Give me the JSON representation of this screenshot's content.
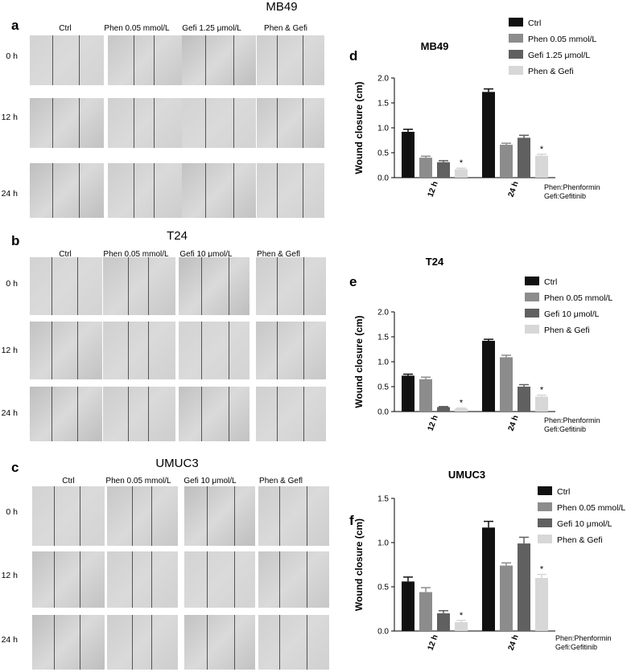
{
  "panels": [
    {
      "letter": "a",
      "title": "MB49",
      "columns": [
        "Ctrl",
        "Phen 0.05 mmol/L",
        "Gefi 1.25 μmol/L",
        "Phen & Gefi"
      ],
      "rows": [
        "0 h",
        "12 h",
        "24 h"
      ]
    },
    {
      "letter": "b",
      "title": "T24",
      "columns": [
        "Ctrl",
        "Phen 0.05 mmol/L",
        "Gefi 10 μmol/L",
        "Phen & Gefl"
      ],
      "rows": [
        "0 h",
        "12 h",
        "24 h"
      ]
    },
    {
      "letter": "c",
      "title": "UMUC3",
      "columns": [
        "Ctrl",
        "Phen 0.05 mmol/L",
        "Gefi 10 μmol/L",
        "Phen & Gefl"
      ],
      "rows": [
        "0 h",
        "12 h",
        "24 h"
      ]
    }
  ],
  "colors": {
    "Ctrl": "#111111",
    "Phen": "#8c8c8c",
    "Gefi": "#606060",
    "Combo": "#d7d7d7"
  },
  "chart_data": [
    {
      "letter": "d",
      "type": "bar",
      "title": "MB49",
      "ylabel": "Wound closure (cm)",
      "xlabel": "",
      "categories": [
        "12 h",
        "24 h"
      ],
      "ylim": [
        0,
        2.0
      ],
      "yticks": [
        "0.0",
        "0.5",
        "1.0",
        "1.5",
        "2.0"
      ],
      "series": [
        {
          "name": "Ctrl",
          "values": [
            0.92,
            1.72
          ],
          "errors": [
            0.05,
            0.06
          ]
        },
        {
          "name": "Phen 0.05 mmol/L",
          "values": [
            0.4,
            0.66
          ],
          "errors": [
            0.03,
            0.03
          ]
        },
        {
          "name": "Gefi 1.25 μmol/L",
          "values": [
            0.31,
            0.8
          ],
          "errors": [
            0.03,
            0.05
          ]
        },
        {
          "name": "Phen & Gefi",
          "values": [
            0.17,
            0.44
          ],
          "errors": [
            0.02,
            0.03
          ]
        }
      ],
      "significance": [
        "*",
        "*"
      ],
      "legend": "top-right",
      "footnote": [
        "Phen:Phenformin",
        "Gefi:Gefitinib"
      ]
    },
    {
      "letter": "e",
      "type": "bar",
      "title": "T24",
      "ylabel": "Wound closure (cm)",
      "xlabel": "",
      "categories": [
        "12 h",
        "24 h"
      ],
      "ylim": [
        0,
        2.0
      ],
      "yticks": [
        "0.0",
        "0.5",
        "1.0",
        "1.5",
        "2.0"
      ],
      "series": [
        {
          "name": "Ctrl",
          "values": [
            0.72,
            1.42
          ],
          "errors": [
            0.03,
            0.03
          ]
        },
        {
          "name": "Phen 0.05 mmol/L",
          "values": [
            0.65,
            1.09
          ],
          "errors": [
            0.04,
            0.04
          ]
        },
        {
          "name": "Gefi 10 μmol/L",
          "values": [
            0.09,
            0.5
          ],
          "errors": [
            0.01,
            0.04
          ]
        },
        {
          "name": "Phen & Gefi",
          "values": [
            0.06,
            0.3
          ],
          "errors": [
            0.01,
            0.03
          ]
        }
      ],
      "significance": [
        "*",
        "*"
      ],
      "legend": "top-right",
      "footnote": [
        "Phen:Phenformin",
        "Gefi:Gefitinib"
      ]
    },
    {
      "letter": "f",
      "type": "bar",
      "title": "UMUC3",
      "ylabel": "Wound closure (cm)",
      "xlabel": "",
      "categories": [
        "12 h",
        "24 h"
      ],
      "ylim": [
        0,
        1.5
      ],
      "yticks": [
        "0.0",
        "0.5",
        "1.0",
        "1.5"
      ],
      "series": [
        {
          "name": "Ctrl",
          "values": [
            0.56,
            1.17
          ],
          "errors": [
            0.05,
            0.07
          ]
        },
        {
          "name": "Phen 0.05 mmol/L",
          "values": [
            0.44,
            0.74
          ],
          "errors": [
            0.05,
            0.03
          ]
        },
        {
          "name": "Gefi 10 μmol/L",
          "values": [
            0.2,
            0.99
          ],
          "errors": [
            0.03,
            0.07
          ]
        },
        {
          "name": "Phen & Gefi",
          "values": [
            0.1,
            0.6
          ],
          "errors": [
            0.02,
            0.04
          ]
        }
      ],
      "significance": [
        "*",
        "*"
      ],
      "legend": "top-right",
      "footnote": [
        "Phen:Phenformin",
        "Gefi:Gefitinib"
      ]
    }
  ]
}
